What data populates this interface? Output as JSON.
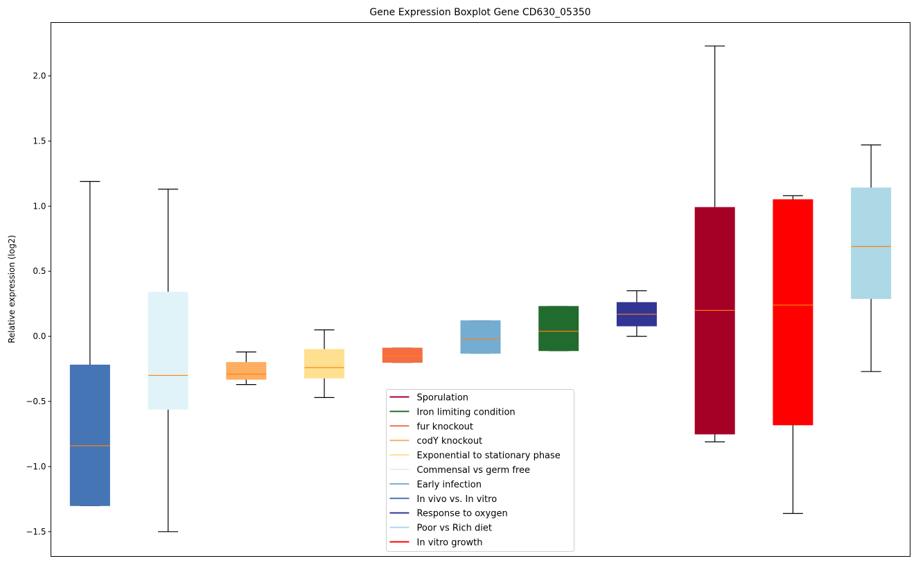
{
  "chart_data": {
    "type": "boxplot",
    "title": "Gene Expression Boxplot Gene CD630_05350",
    "xlabel": "",
    "ylabel": "Relative expression (log2)",
    "ylim": [
      -1.69,
      2.41
    ],
    "yticks": [
      -1.5,
      -1.0,
      -0.5,
      0.0,
      0.5,
      1.0,
      1.5,
      2.0
    ],
    "ytick_labels": [
      "−1.5",
      "−1.0",
      "−0.5",
      "0.0",
      "0.5",
      "1.0",
      "1.5",
      "2.0"
    ],
    "xticks_visible": false,
    "grid": false,
    "median_color": "#ff7f0e",
    "whisker_color": "#000000",
    "series": [
      {
        "name": "In vivo vs. In vitro",
        "color": "#4575b4",
        "whisker_low": -1.3,
        "q1": -1.3,
        "median": -0.84,
        "q3": -0.22,
        "whisker_high": 1.19
      },
      {
        "name": "Commensal vs germ free",
        "color": "#e0f3f8",
        "whisker_low": -1.5,
        "q1": -0.56,
        "median": -0.3,
        "q3": 0.34,
        "whisker_high": 1.13
      },
      {
        "name": "codY knockout",
        "color": "#fdae61",
        "whisker_low": -0.37,
        "q1": -0.33,
        "median": -0.29,
        "q3": -0.2,
        "whisker_high": -0.12
      },
      {
        "name": "Exponential to stationary phase",
        "color": "#fee090",
        "whisker_low": -0.47,
        "q1": -0.32,
        "median": -0.24,
        "q3": -0.1,
        "whisker_high": 0.05
      },
      {
        "name": "fur knockout",
        "color": "#f46d43",
        "whisker_low": -0.2,
        "q1": -0.2,
        "median": -0.15,
        "q3": -0.09,
        "whisker_high": -0.09
      },
      {
        "name": "Early infection",
        "color": "#74add1",
        "whisker_low": -0.13,
        "q1": -0.13,
        "median": -0.02,
        "q3": 0.12,
        "whisker_high": 0.12
      },
      {
        "name": "Iron limiting condition",
        "color": "#226b2e",
        "whisker_low": -0.11,
        "q1": -0.11,
        "median": 0.04,
        "q3": 0.23,
        "whisker_high": 0.23
      },
      {
        "name": "Response to oxygen",
        "color": "#313695",
        "whisker_low": 0.0,
        "q1": 0.08,
        "median": 0.17,
        "q3": 0.26,
        "whisker_high": 0.35
      },
      {
        "name": "Sporulation",
        "color": "#a50026",
        "whisker_low": -0.81,
        "q1": -0.75,
        "median": 0.2,
        "q3": 0.99,
        "whisker_high": 2.23
      },
      {
        "name": "In vitro growth",
        "color": "#ff0000",
        "whisker_low": -1.36,
        "q1": -0.68,
        "median": 0.24,
        "q3": 1.05,
        "whisker_high": 1.08
      },
      {
        "name": "Poor vs Rich diet",
        "color": "#add8e6",
        "whisker_low": -0.27,
        "q1": 0.29,
        "median": 0.69,
        "q3": 1.14,
        "whisker_high": 1.47
      }
    ],
    "legend": {
      "placement": "lower-center",
      "entries": [
        {
          "label": "Sporulation",
          "color": "#a50026"
        },
        {
          "label": "Iron limiting condition",
          "color": "#226b2e"
        },
        {
          "label": "fur knockout",
          "color": "#f46d43"
        },
        {
          "label": "codY knockout",
          "color": "#fdae61"
        },
        {
          "label": "Exponential to stationary phase",
          "color": "#fee090"
        },
        {
          "label": "Commensal vs germ free",
          "color": "#e0f3f8"
        },
        {
          "label": "Early infection",
          "color": "#74add1"
        },
        {
          "label": "In vivo vs. In vitro",
          "color": "#4575b4"
        },
        {
          "label": "Response to oxygen",
          "color": "#313695"
        },
        {
          "label": "Poor vs Rich diet",
          "color": "#add8e6"
        },
        {
          "label": "In vitro growth",
          "color": "#ff0000"
        }
      ]
    }
  }
}
